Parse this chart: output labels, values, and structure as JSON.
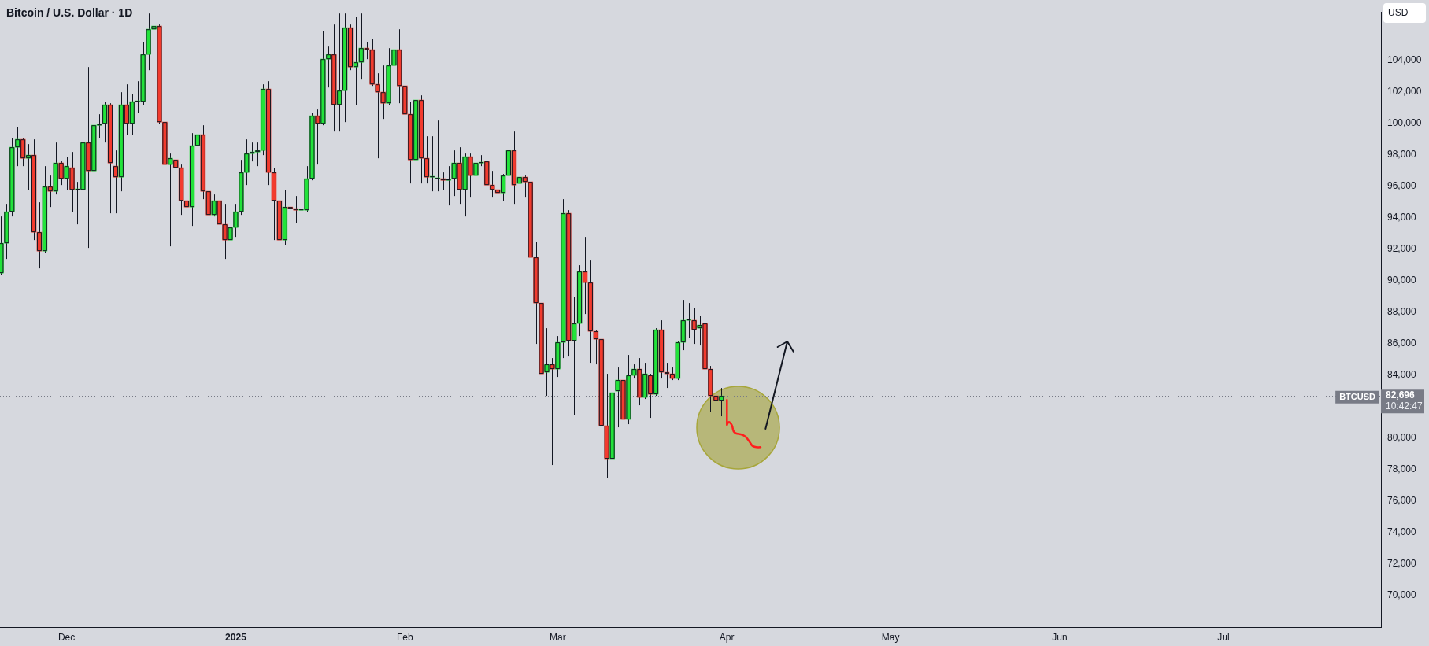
{
  "chart_data": {
    "type": "candlestick",
    "title": "Bitcoin / U.S. Dollar · 1D",
    "ylabel": "USD",
    "x": [
      "2024-11-19",
      "2024-11-20",
      "2024-11-21",
      "2024-11-22",
      "2024-11-23",
      "2024-11-24",
      "2024-11-25",
      "2024-11-26",
      "2024-11-27",
      "2024-11-28",
      "2024-11-29",
      "2024-11-30",
      "2024-12-01",
      "2024-12-02",
      "2024-12-03",
      "2024-12-04",
      "2024-12-05",
      "2024-12-06",
      "2024-12-07",
      "2024-12-08",
      "2024-12-09",
      "2024-12-10",
      "2024-12-11",
      "2024-12-12",
      "2024-12-13",
      "2024-12-14",
      "2024-12-15",
      "2024-12-16",
      "2024-12-17",
      "2024-12-18",
      "2024-12-19",
      "2024-12-20",
      "2024-12-21",
      "2024-12-22",
      "2024-12-23",
      "2024-12-24",
      "2024-12-25",
      "2024-12-26",
      "2024-12-27",
      "2024-12-28",
      "2024-12-29",
      "2024-12-30",
      "2024-12-31",
      "2025-01-01",
      "2025-01-02",
      "2025-01-03",
      "2025-01-04",
      "2025-01-05",
      "2025-01-06",
      "2025-01-07",
      "2025-01-08",
      "2025-01-09",
      "2025-01-10",
      "2025-01-11",
      "2025-01-12",
      "2025-01-13",
      "2025-01-14",
      "2025-01-15",
      "2025-01-16",
      "2025-01-17",
      "2025-01-18",
      "2025-01-19",
      "2025-01-20",
      "2025-01-21",
      "2025-01-22",
      "2025-01-23",
      "2025-01-24",
      "2025-01-25",
      "2025-01-26",
      "2025-01-27",
      "2025-01-28",
      "2025-01-29",
      "2025-01-30",
      "2025-01-31",
      "2025-02-01",
      "2025-02-02",
      "2025-02-03",
      "2025-02-04",
      "2025-02-05",
      "2025-02-06",
      "2025-02-07",
      "2025-02-08",
      "2025-02-09",
      "2025-02-10",
      "2025-02-11",
      "2025-02-12",
      "2025-02-13",
      "2025-02-14",
      "2025-02-15",
      "2025-02-16",
      "2025-02-17",
      "2025-02-18",
      "2025-02-19",
      "2025-02-20",
      "2025-02-21",
      "2025-02-22",
      "2025-02-23",
      "2025-02-24",
      "2025-02-25",
      "2025-02-26",
      "2025-02-27",
      "2025-02-28",
      "2025-03-01",
      "2025-03-02",
      "2025-03-03",
      "2025-03-04",
      "2025-03-05",
      "2025-03-06",
      "2025-03-07",
      "2025-03-08",
      "2025-03-09",
      "2025-03-10",
      "2025-03-11",
      "2025-03-12",
      "2025-03-13",
      "2025-03-14",
      "2025-03-15",
      "2025-03-16",
      "2025-03-17",
      "2025-03-18",
      "2025-03-19",
      "2025-03-20",
      "2025-03-21",
      "2025-03-22",
      "2025-03-23",
      "2025-03-24",
      "2025-03-25",
      "2025-03-26",
      "2025-03-27",
      "2025-03-28",
      "2025-03-29",
      "2025-03-30",
      "2025-03-31"
    ],
    "ohlc": [
      [
        90500,
        94100,
        90400,
        92400
      ],
      [
        92400,
        94900,
        91400,
        94400
      ],
      [
        94400,
        99100,
        94100,
        98500
      ],
      [
        98500,
        99800,
        97300,
        99000
      ],
      [
        99000,
        99100,
        97300,
        97800
      ],
      [
        97800,
        98700,
        95800,
        98000
      ],
      [
        98000,
        99000,
        92600,
        93100
      ],
      [
        93100,
        95000,
        90800,
        91900
      ],
      [
        91900,
        97300,
        91800,
        96000
      ],
      [
        96000,
        96700,
        94700,
        95700
      ],
      [
        95700,
        98800,
        95500,
        97500
      ],
      [
        97500,
        97600,
        96100,
        96500
      ],
      [
        96500,
        97900,
        95800,
        97300
      ],
      [
        97200,
        98200,
        94400,
        95800
      ],
      [
        95800,
        96300,
        93600,
        95800
      ],
      [
        95800,
        99300,
        94700,
        98800
      ],
      [
        98800,
        103600,
        92100,
        97000
      ],
      [
        97000,
        102100,
        96500,
        99900
      ],
      [
        99900,
        100600,
        99100,
        99900
      ],
      [
        100000,
        101400,
        98800,
        101200
      ],
      [
        101200,
        101300,
        94300,
        97500
      ],
      [
        97300,
        98300,
        94300,
        96600
      ],
      [
        96600,
        102000,
        95700,
        101200
      ],
      [
        101200,
        102500,
        99300,
        100000
      ],
      [
        100000,
        101900,
        99300,
        101400
      ],
      [
        101400,
        102700,
        100700,
        101400
      ],
      [
        101400,
        105200,
        101200,
        104400
      ],
      [
        104400,
        107000,
        103400,
        106000
      ],
      [
        106000,
        107000,
        105300,
        106200
      ],
      [
        106200,
        106300,
        100000,
        100100
      ],
      [
        100100,
        102700,
        95600,
        97400
      ],
      [
        97400,
        98100,
        92200,
        97800
      ],
      [
        97700,
        99500,
        96400,
        97200
      ],
      [
        97200,
        97400,
        94200,
        95100
      ],
      [
        95100,
        96400,
        92400,
        94700
      ],
      [
        94700,
        99400,
        93500,
        98600
      ],
      [
        98600,
        99500,
        97600,
        99300
      ],
      [
        99300,
        99900,
        95200,
        95700
      ],
      [
        95700,
        97300,
        93300,
        94200
      ],
      [
        94200,
        95500,
        94100,
        95100
      ],
      [
        95100,
        95100,
        92900,
        93600
      ],
      [
        93600,
        94900,
        91400,
        92600
      ],
      [
        92600,
        96100,
        91900,
        93400
      ],
      [
        93400,
        94900,
        92800,
        94400
      ],
      [
        94400,
        97700,
        94200,
        96900
      ],
      [
        96900,
        99000,
        96100,
        98100
      ],
      [
        98100,
        98800,
        97600,
        98200
      ],
      [
        98200,
        98800,
        97300,
        98300
      ],
      [
        98300,
        102500,
        98000,
        102200
      ],
      [
        102200,
        102700,
        96100,
        96900
      ],
      [
        96900,
        97200,
        92600,
        95100
      ],
      [
        95100,
        95300,
        91300,
        92600
      ],
      [
        92600,
        95800,
        92300,
        94700
      ],
      [
        94700,
        95000,
        93900,
        94600
      ],
      [
        94600,
        95400,
        93700,
        94500
      ],
      [
        94500,
        95900,
        89200,
        94500
      ],
      [
        94500,
        97300,
        94400,
        96500
      ],
      [
        96500,
        100700,
        96400,
        100500
      ],
      [
        100500,
        100900,
        97400,
        100000
      ],
      [
        100000,
        105900,
        99900,
        104100
      ],
      [
        104100,
        104900,
        102300,
        104400
      ],
      [
        104400,
        106300,
        99500,
        101200
      ],
      [
        101200,
        107000,
        99500,
        102100
      ],
      [
        102100,
        107000,
        100100,
        106100
      ],
      [
        106100,
        106300,
        103400,
        103600
      ],
      [
        103600,
        106800,
        101200,
        103900
      ],
      [
        103900,
        107000,
        102800,
        104800
      ],
      [
        104800,
        105200,
        104100,
        104700
      ],
      [
        104700,
        105400,
        102400,
        102500
      ],
      [
        102500,
        103200,
        97800,
        102000
      ],
      [
        102000,
        103700,
        100300,
        101300
      ],
      [
        101300,
        104800,
        101200,
        103700
      ],
      [
        103700,
        106400,
        103300,
        104700
      ],
      [
        104700,
        106000,
        101300,
        102400
      ],
      [
        102400,
        102700,
        100300,
        100600
      ],
      [
        100600,
        101400,
        96200,
        97700
      ],
      [
        97700,
        102600,
        91600,
        101500
      ],
      [
        101500,
        101800,
        96200,
        97800
      ],
      [
        97800,
        99200,
        96200,
        96600
      ],
      [
        96600,
        99200,
        95700,
        96600
      ],
      [
        96500,
        100200,
        95700,
        96500
      ],
      [
        96500,
        96900,
        95800,
        96400
      ],
      [
        96400,
        97300,
        94800,
        96400
      ],
      [
        96500,
        98300,
        95400,
        97500
      ],
      [
        97500,
        98500,
        94900,
        95800
      ],
      [
        95800,
        98100,
        94100,
        97900
      ],
      [
        97900,
        98100,
        95300,
        96700
      ],
      [
        96700,
        98900,
        96400,
        97500
      ],
      [
        97500,
        98000,
        97300,
        97500
      ],
      [
        97600,
        97700,
        96000,
        96100
      ],
      [
        96100,
        97000,
        95300,
        95800
      ],
      [
        95800,
        96700,
        93400,
        95600
      ],
      [
        95600,
        96800,
        95100,
        96700
      ],
      [
        96700,
        98800,
        96500,
        98300
      ],
      [
        98300,
        99500,
        94900,
        96100
      ],
      [
        96200,
        96900,
        95800,
        96600
      ],
      [
        96600,
        96700,
        95300,
        96300
      ],
      [
        96300,
        96500,
        91400,
        91500
      ],
      [
        91500,
        92500,
        86000,
        88600
      ],
      [
        88600,
        89300,
        82200,
        84100
      ],
      [
        84200,
        87000,
        82700,
        84700
      ],
      [
        84700,
        85100,
        78300,
        84400
      ],
      [
        84400,
        86500,
        83900,
        86100
      ],
      [
        86100,
        95200,
        85100,
        94300
      ],
      [
        94300,
        94500,
        85200,
        86200
      ],
      [
        86200,
        89000,
        81500,
        87300
      ],
      [
        87300,
        91000,
        86500,
        90600
      ],
      [
        90600,
        92800,
        87900,
        89900
      ],
      [
        89900,
        91300,
        84800,
        86800
      ],
      [
        86800,
        86900,
        84700,
        86300
      ],
      [
        86300,
        86500,
        80100,
        80800
      ],
      [
        80800,
        84100,
        77500,
        78700
      ],
      [
        78700,
        83600,
        76700,
        82900
      ],
      [
        83000,
        84500,
        80700,
        83700
      ],
      [
        83700,
        84300,
        80000,
        81200
      ],
      [
        81200,
        85300,
        80900,
        84000
      ],
      [
        84000,
        84700,
        83800,
        84400
      ],
      [
        84400,
        85100,
        82100,
        82600
      ],
      [
        82600,
        84800,
        82500,
        84100
      ],
      [
        84000,
        84100,
        81300,
        82800
      ],
      [
        82800,
        87000,
        82700,
        86900
      ],
      [
        86900,
        87500,
        83800,
        84200
      ],
      [
        84200,
        84800,
        83200,
        84100
      ],
      [
        84100,
        84500,
        83700,
        83800
      ],
      [
        83800,
        86200,
        83700,
        86100
      ],
      [
        86100,
        88800,
        85600,
        87500
      ],
      [
        87500,
        88600,
        86400,
        87500
      ],
      [
        87500,
        88300,
        86000,
        86900
      ],
      [
        87000,
        87800,
        85900,
        87200
      ],
      [
        87300,
        87500,
        83700,
        84400
      ],
      [
        84400,
        84600,
        81700,
        82700
      ],
      [
        82700,
        83600,
        81600,
        82400
      ],
      [
        82400,
        83200,
        81400,
        82696
      ]
    ],
    "colors": [
      "#22e33a",
      "#22e33a",
      "#22e33a",
      "#22e33a",
      "#f23b2e",
      "#22e33a",
      "#f23b2e",
      "#f23b2e",
      "#22e33a",
      "#f23b2e",
      "#22e33a",
      "#f23b2e",
      "#22e33a",
      "#f23b2e",
      "#22e33a",
      "#22e33a",
      "#f23b2e",
      "#22e33a",
      "#22e33a",
      "#22e33a",
      "#f23b2e",
      "#f23b2e",
      "#22e33a",
      "#f23b2e",
      "#22e33a",
      "#22e33a",
      "#22e33a",
      "#22e33a",
      "#22e33a",
      "#f23b2e",
      "#f23b2e",
      "#22e33a",
      "#f23b2e",
      "#f23b2e",
      "#f23b2e",
      "#22e33a",
      "#22e33a",
      "#f23b2e",
      "#f23b2e",
      "#22e33a",
      "#f23b2e",
      "#f23b2e",
      "#22e33a",
      "#22e33a",
      "#22e33a",
      "#22e33a",
      "#22e33a",
      "#22e33a",
      "#22e33a",
      "#f23b2e",
      "#f23b2e",
      "#f23b2e",
      "#22e33a",
      "#f23b2e",
      "#f23b2e",
      "#22e33a",
      "#22e33a",
      "#22e33a",
      "#f23b2e",
      "#22e33a",
      "#22e33a",
      "#f23b2e",
      "#22e33a",
      "#22e33a",
      "#f23b2e",
      "#22e33a",
      "#22e33a",
      "#f23b2e",
      "#f23b2e",
      "#f23b2e",
      "#f23b2e",
      "#22e33a",
      "#22e33a",
      "#f23b2e",
      "#f23b2e",
      "#f23b2e",
      "#22e33a",
      "#f23b2e",
      "#f23b2e",
      "#22e33a",
      "#22e33a",
      "#f23b2e",
      "#22e33a",
      "#22e33a",
      "#f23b2e",
      "#22e33a",
      "#f23b2e",
      "#22e33a",
      "#22e33a",
      "#f23b2e",
      "#f23b2e",
      "#f23b2e",
      "#22e33a",
      "#22e33a",
      "#f23b2e",
      "#22e33a",
      "#f23b2e",
      "#f23b2e",
      "#f23b2e",
      "#f23b2e",
      "#22e33a",
      "#f23b2e",
      "#22e33a",
      "#22e33a",
      "#f23b2e",
      "#22e33a",
      "#22e33a",
      "#f23b2e",
      "#f23b2e",
      "#f23b2e",
      "#f23b2e",
      "#f23b2e",
      "#22e33a",
      "#22e33a",
      "#f23b2e",
      "#22e33a",
      "#22e33a",
      "#f23b2e",
      "#22e33a",
      "#f23b2e",
      "#22e33a",
      "#f23b2e",
      "#f23b2e",
      "#f23b2e",
      "#22e33a",
      "#22e33a",
      "#22e33a",
      "#f23b2e",
      "#22e33a",
      "#f23b2e",
      "#f23b2e",
      "#f23b2e",
      "#22e33a"
    ],
    "xlim": [
      "2024-11-18T19:00",
      "2025-07-29T21:00"
    ],
    "xticks": [
      {
        "value": "2024-12-01",
        "label": "Dec"
      },
      {
        "value": "2025-01-01",
        "label": "2025"
      },
      {
        "value": "2025-02-01",
        "label": "Feb"
      },
      {
        "value": "2025-03-01",
        "label": "Mar"
      },
      {
        "value": "2025-04-01",
        "label": "Apr"
      },
      {
        "value": "2025-05-01",
        "label": "May"
      },
      {
        "value": "2025-06-01",
        "label": "Jun"
      },
      {
        "value": "2025-07-01",
        "label": "Jul"
      }
    ],
    "ylim": [
      68000,
      107100
    ],
    "yticks": [
      {
        "value": 70000,
        "label": "70,000"
      },
      {
        "value": 72000,
        "label": "72,000"
      },
      {
        "value": 74000,
        "label": "74,000"
      },
      {
        "value": 76000,
        "label": "76,000"
      },
      {
        "value": 78000,
        "label": "78,000"
      },
      {
        "value": 80000,
        "label": "80,000"
      },
      {
        "value": 84000,
        "label": "84,000"
      },
      {
        "value": 86000,
        "label": "86,000"
      },
      {
        "value": 88000,
        "label": "88,000"
      },
      {
        "value": 90000,
        "label": "90,000"
      },
      {
        "value": 92000,
        "label": "92,000"
      },
      {
        "value": 94000,
        "label": "94,000"
      },
      {
        "value": 96000,
        "label": "96,000"
      },
      {
        "value": 98000,
        "label": "98,000"
      },
      {
        "value": 100000,
        "label": "100,000"
      },
      {
        "value": 102000,
        "label": "102,000"
      },
      {
        "value": 104000,
        "label": "104,000"
      }
    ],
    "ref_lines": [
      {
        "axis": "y",
        "value": 82696,
        "label": "BTCUSD",
        "color": "#787b86",
        "line_style": "dotted"
      }
    ],
    "annotations": [
      "82,696",
      "10:42:47"
    ]
  }
}
